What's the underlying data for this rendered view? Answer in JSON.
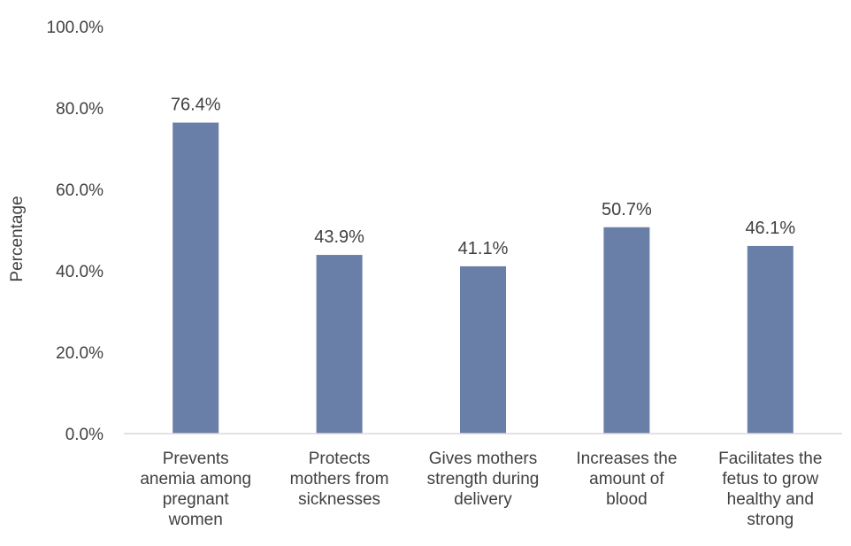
{
  "chart_data": {
    "type": "bar",
    "title": "",
    "xlabel": "",
    "ylabel": "Percentage",
    "ylim": [
      0,
      100
    ],
    "yticks": [
      "0.0%",
      "20.0%",
      "40.0%",
      "60.0%",
      "80.0%",
      "100.0%"
    ],
    "grid": false,
    "legend": "none",
    "bar_color": "#6a7fa8",
    "categories": [
      [
        "Prevents",
        "anemia among",
        "pregnant",
        "women"
      ],
      [
        "Protects",
        "mothers from",
        "sicknesses"
      ],
      [
        "Gives mothers",
        "strength during",
        "delivery"
      ],
      [
        "Increases the",
        "amount of",
        "blood"
      ],
      [
        "Facilitates the",
        "fetus to grow",
        "healthy and",
        "strong"
      ]
    ],
    "values": [
      76.4,
      43.9,
      41.1,
      50.7,
      46.1
    ],
    "data_labels": [
      "76.4%",
      "43.9%",
      "41.1%",
      "50.7%",
      "46.1%"
    ]
  }
}
